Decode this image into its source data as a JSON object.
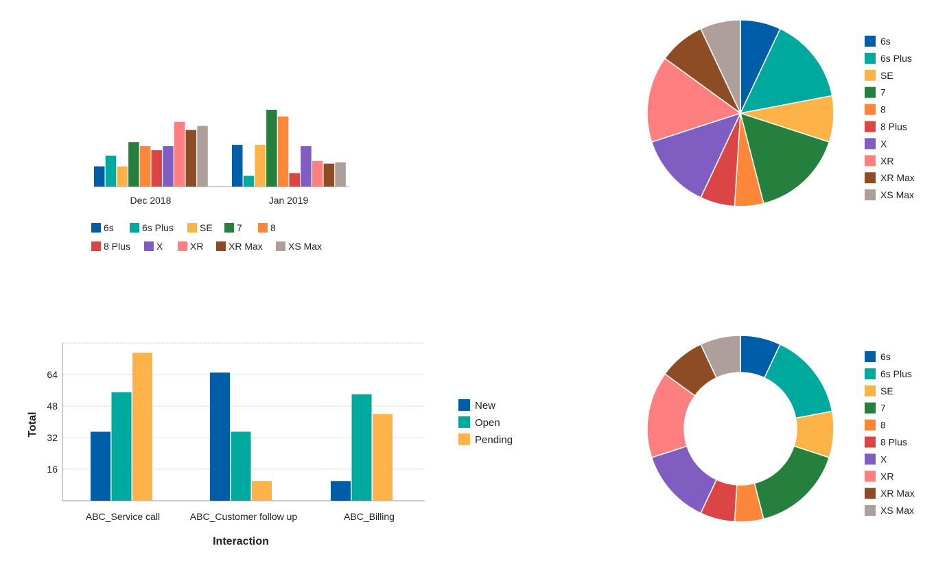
{
  "colors": {
    "6s": "#005ea8",
    "6s Plus": "#00a99d",
    "SE": "#fdb347",
    "7": "#25803d",
    "8": "#fd8738",
    "8 Plus": "#dc4545",
    "X": "#805dc1",
    "XR": "#fd7f7f",
    "XR Max": "#8d4c23",
    "XS Max": "#ae9f9b",
    "New": "#005ea8",
    "Open": "#00a99d",
    "Pending": "#fdb347",
    "axis": "#9a9a9a",
    "grid": "#c8c8c8"
  },
  "chart_data": [
    {
      "type": "bar",
      "categories": [
        "Dec 2018",
        "Jan 2019"
      ],
      "series": [
        {
          "name": "6s",
          "values": [
            15,
            31
          ]
        },
        {
          "name": "6s Plus",
          "values": [
            23,
            8
          ]
        },
        {
          "name": "SE",
          "values": [
            15,
            31
          ]
        },
        {
          "name": "7",
          "values": [
            33,
            57
          ]
        },
        {
          "name": "8",
          "values": [
            30,
            52
          ]
        },
        {
          "name": "8 Plus",
          "values": [
            27,
            10
          ]
        },
        {
          "name": "X",
          "values": [
            30,
            30
          ]
        },
        {
          "name": "XR",
          "values": [
            48,
            19
          ]
        },
        {
          "name": "XR Max",
          "values": [
            42,
            17
          ]
        },
        {
          "name": "XS Max",
          "values": [
            45,
            18
          ]
        }
      ],
      "title": "",
      "xlabel": "",
      "ylabel": "",
      "ylim": [
        0,
        60
      ],
      "legend": "bottom",
      "grid": false
    },
    {
      "type": "pie",
      "labels": [
        "6s",
        "6s Plus",
        "SE",
        "7",
        "8",
        "8 Plus",
        "X",
        "XR",
        "XR Max",
        "XS Max"
      ],
      "values": [
        7,
        15,
        8,
        16,
        5,
        6,
        13,
        15,
        8,
        7
      ],
      "legend": "right"
    },
    {
      "type": "bar",
      "categories": [
        "ABC_Service call",
        "ABC_Customer follow up",
        "ABC_Billing"
      ],
      "series": [
        {
          "name": "New",
          "values": [
            35,
            65,
            10
          ]
        },
        {
          "name": "Open",
          "values": [
            55,
            35,
            54
          ]
        },
        {
          "name": "Pending",
          "values": [
            75,
            10,
            44
          ]
        }
      ],
      "title": "",
      "xlabel": "Interaction",
      "ylabel": "Total",
      "yticks": [
        16,
        32,
        48,
        64
      ],
      "ylim": [
        0,
        80
      ],
      "grid": true,
      "legend": "right"
    },
    {
      "type": "pie",
      "donut": true,
      "labels": [
        "6s",
        "6s Plus",
        "SE",
        "7",
        "8",
        "8 Plus",
        "X",
        "XR",
        "XR Max",
        "XS Max"
      ],
      "values": [
        7,
        15,
        8,
        16,
        5,
        6,
        13,
        15,
        8,
        7
      ],
      "legend": "right"
    }
  ]
}
